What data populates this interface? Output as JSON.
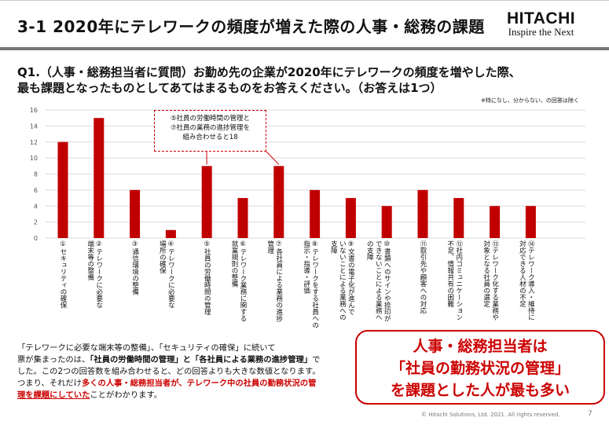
{
  "header": {
    "title": "3-1  2020年にテレワークの頻度が増えた際の人事・総務の課題",
    "logo_main": "HITACHI",
    "logo_tagline": "Inspire the Next"
  },
  "question": {
    "line1": "Q1.（人事・総務担当者に質問）お勤め先の企業が2020年にテレワークの頻度を増やした際、",
    "line2": "最も課題となったものとしてあてはまるものをお答えください。（お答えは1つ）",
    "note": "※特になし、分からない、の回答は除く"
  },
  "chart_data": {
    "type": "bar",
    "categories": [
      "①セキュリティの確保",
      "②テレワークに必要な\n端末等の整備",
      "③通信環境の整備",
      "④テレワークに必要な\n場所の確保",
      "⑤社員の労働時間の管理",
      "⑥テレワーク業務に関する\n就業規則の整備",
      "⑦各社員による業務の進捗\n管理",
      "⑧テレワークをする社員への\n指示・指導・評価",
      "⑨文書の電子化が進んで\nいないことによる業務への\n支障",
      "⑩書類へのサインや捺印が\nできないことによる業務へ\nの支障",
      "⑪取引先や顧客への対応",
      "⑫社内コミュニケーション\n不足、情報共有の困難",
      "⑬テレワーク化する業務や\n対象となる社員の選定",
      "⑭テレワーク導入・維持に\n対応できる人材の不足"
    ],
    "values": [
      12,
      15,
      6,
      1,
      9,
      5,
      9,
      6,
      5,
      4,
      6,
      5,
      4,
      4
    ],
    "y_ticks": [
      "0",
      "2",
      "4",
      "6",
      "8",
      "10",
      "12",
      "14",
      "16"
    ],
    "ylim": [
      0,
      16
    ],
    "grid": true,
    "bar_color": "#c00000",
    "annotation": {
      "line1": "⑤社員の労働時間の管理と",
      "line2": "⑦社員の業務の進捗管理を",
      "line3": "組み合わせると18"
    }
  },
  "description": {
    "p1": "「テレワークに必要な端末等の整備」、「セキュリティの確保」に続いて",
    "p2a": "票が集まったのは、",
    "p2b": "「社員の労働時間の管理」と「各社員による業務の進捗管理」",
    "p2c": "で",
    "p3": "した。この2つの回答数を組み合わせると、どの回答よりも大きな数値となります。",
    "p4a": "つまり、それだけ",
    "p4b": "多くの人事・総務担当者が、テレワーク中の社員の勤務状況の管",
    "p5a": "理を課題にしていた",
    "p5b": "ことがわかります。"
  },
  "conclusion": {
    "line1": "人事・総務担当者は",
    "line2": "「社員の勤務状況の管理」",
    "line3": "を課題とした人が最も多い"
  },
  "footer": {
    "copyright": "© Hitachi Solutions, Ltd. 2021. All rights reserved.",
    "page": "7"
  }
}
